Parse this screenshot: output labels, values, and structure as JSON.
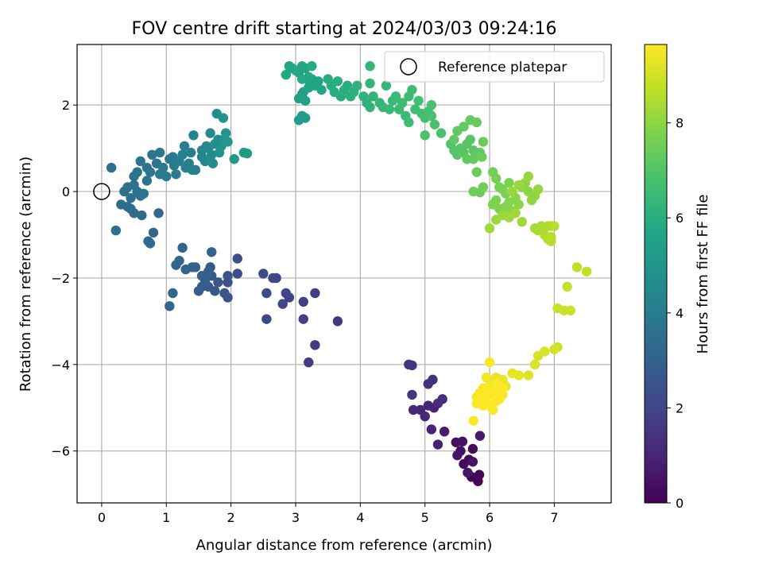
{
  "chart_data": {
    "type": "scatter",
    "title": "FOV centre drift starting at 2024/03/03 09:24:16",
    "xlabel": "Angular distance from reference (arcmin)",
    "ylabel": "Rotation from reference (arcmin)",
    "xlim": [
      -0.38,
      7.88
    ],
    "ylim": [
      -7.2,
      3.4
    ],
    "xticks": [
      0,
      1,
      2,
      3,
      4,
      5,
      6,
      7
    ],
    "yticks": [
      -6,
      -4,
      -2,
      0,
      2
    ],
    "grid": true,
    "legend": {
      "position": "top-right",
      "entries": [
        "Reference platepar"
      ]
    },
    "colorbar": {
      "label": "Hours from first FF file",
      "range": [
        0,
        9.65
      ],
      "ticks": [
        0,
        2,
        4,
        6,
        8
      ],
      "colormap": "viridis"
    },
    "reference_point": {
      "x": 0,
      "y": 0,
      "name": "Reference platepar"
    },
    "points": [
      [
        5.82,
        -6.7,
        0.05
      ],
      [
        5.72,
        -6.6,
        0.1
      ],
      [
        5.84,
        -6.55,
        0.15
      ],
      [
        5.6,
        -6.3,
        0.2
      ],
      [
        5.68,
        -6.2,
        0.25
      ],
      [
        5.74,
        -5.95,
        0.3
      ],
      [
        5.55,
        -6.0,
        0.35
      ],
      [
        5.48,
        -5.8,
        0.4
      ],
      [
        5.58,
        -5.78,
        0.45
      ],
      [
        5.74,
        -6.25,
        0.5
      ],
      [
        5.5,
        -6.1,
        0.55
      ],
      [
        5.66,
        -6.5,
        0.6
      ],
      [
        5.85,
        -5.65,
        0.7
      ],
      [
        5.3,
        -5.55,
        0.8
      ],
      [
        5.2,
        -5.85,
        0.85
      ],
      [
        5.1,
        -5.5,
        0.9
      ],
      [
        5.14,
        -5.0,
        0.95
      ],
      [
        5.05,
        -4.95,
        1.0
      ],
      [
        5.0,
        -5.2,
        1.05
      ],
      [
        4.93,
        -5.05,
        1.1
      ],
      [
        4.82,
        -5.05,
        1.15
      ],
      [
        5.2,
        -4.9,
        1.2
      ],
      [
        5.27,
        -4.8,
        1.25
      ],
      [
        5.12,
        -4.35,
        1.3
      ],
      [
        5.05,
        -4.45,
        1.35
      ],
      [
        4.75,
        -4.0,
        1.4
      ],
      [
        4.8,
        -4.02,
        1.45
      ],
      [
        4.8,
        -4.7,
        1.5
      ],
      [
        3.65,
        -3.0,
        1.6
      ],
      [
        3.3,
        -3.55,
        1.65
      ],
      [
        3.2,
        -3.95,
        1.7
      ],
      [
        3.3,
        -2.35,
        1.75
      ],
      [
        3.12,
        -2.55,
        1.8
      ],
      [
        3.12,
        -2.95,
        1.85
      ],
      [
        2.9,
        -2.45,
        1.9
      ],
      [
        2.85,
        -2.35,
        1.95
      ],
      [
        2.8,
        -2.6,
        2.0
      ],
      [
        2.7,
        -2.0,
        2.05
      ],
      [
        2.65,
        -2.0,
        2.1
      ],
      [
        2.55,
        -2.95,
        2.15
      ],
      [
        2.55,
        -2.35,
        2.2
      ],
      [
        2.5,
        -1.9,
        2.25
      ],
      [
        2.1,
        -1.9,
        2.3
      ],
      [
        2.1,
        -1.55,
        2.35
      ],
      [
        1.95,
        -1.95,
        2.4
      ],
      [
        1.95,
        -2.1,
        2.45
      ],
      [
        1.95,
        -2.45,
        2.5
      ],
      [
        1.9,
        -2.35,
        2.55
      ],
      [
        1.8,
        -2.1,
        2.6
      ],
      [
        1.75,
        -2.3,
        2.6
      ],
      [
        1.68,
        -1.75,
        2.65
      ],
      [
        1.7,
        -1.95,
        2.7
      ],
      [
        1.65,
        -2.2,
        2.75
      ],
      [
        1.55,
        -2.2,
        2.8
      ],
      [
        1.5,
        -2.3,
        2.85
      ],
      [
        1.55,
        -1.95,
        2.9
      ],
      [
        1.6,
        -2.05,
        2.9
      ],
      [
        1.65,
        -1.85,
        2.95
      ],
      [
        1.7,
        -1.4,
        3.0
      ],
      [
        1.45,
        -1.75,
        3.05
      ],
      [
        1.4,
        -1.75,
        3.05
      ],
      [
        1.3,
        -1.8,
        3.1
      ],
      [
        1.25,
        -1.3,
        3.1
      ],
      [
        1.2,
        -1.6,
        3.15
      ],
      [
        1.15,
        -1.7,
        3.15
      ],
      [
        1.1,
        -2.35,
        3.2
      ],
      [
        1.05,
        -2.65,
        3.2
      ],
      [
        0.88,
        -0.5,
        3.25
      ],
      [
        0.8,
        -0.95,
        3.25
      ],
      [
        0.75,
        -1.2,
        3.3
      ],
      [
        0.72,
        -1.15,
        3.3
      ],
      [
        0.62,
        -0.55,
        3.35
      ],
      [
        0.5,
        -0.5,
        3.4
      ],
      [
        0.45,
        -0.4,
        3.4
      ],
      [
        0.4,
        -0.35,
        3.45
      ],
      [
        0.3,
        -0.3,
        3.45
      ],
      [
        0.22,
        -0.9,
        3.5
      ],
      [
        0.15,
        0.55,
        3.5
      ],
      [
        0.35,
        0.0,
        3.5
      ],
      [
        0.4,
        0.1,
        3.55
      ],
      [
        0.45,
        -0.15,
        3.55
      ],
      [
        0.5,
        0.15,
        3.6
      ],
      [
        0.55,
        0.0,
        3.6
      ],
      [
        0.6,
        -0.1,
        3.6
      ],
      [
        0.65,
        -0.05,
        3.65
      ],
      [
        0.7,
        0.25,
        3.65
      ],
      [
        0.5,
        0.35,
        3.65
      ],
      [
        0.55,
        0.45,
        3.7
      ],
      [
        0.6,
        0.7,
        3.7
      ],
      [
        0.7,
        0.55,
        3.75
      ],
      [
        0.75,
        0.45,
        3.75
      ],
      [
        0.78,
        0.85,
        3.8
      ],
      [
        0.85,
        0.65,
        3.8
      ],
      [
        0.9,
        0.9,
        3.85
      ],
      [
        0.9,
        0.4,
        3.85
      ],
      [
        0.95,
        0.55,
        3.9
      ],
      [
        1.0,
        0.35,
        3.9
      ],
      [
        1.05,
        0.75,
        3.95
      ],
      [
        1.1,
        0.8,
        3.95
      ],
      [
        1.12,
        0.6,
        4.0
      ],
      [
        1.15,
        0.4,
        4.0
      ],
      [
        1.2,
        0.7,
        4.05
      ],
      [
        1.25,
        0.85,
        4.05
      ],
      [
        1.28,
        1.05,
        4.1
      ],
      [
        1.3,
        0.55,
        4.1
      ],
      [
        1.35,
        0.65,
        4.15
      ],
      [
        1.38,
        0.9,
        4.15
      ],
      [
        1.4,
        0.5,
        4.2
      ],
      [
        1.45,
        0.5,
        4.2
      ],
      [
        1.42,
        1.3,
        4.25
      ],
      [
        1.55,
        0.8,
        4.3
      ],
      [
        1.55,
        0.95,
        4.35
      ],
      [
        1.6,
        0.7,
        4.4
      ],
      [
        1.62,
        1.05,
        4.45
      ],
      [
        1.65,
        1.0,
        4.5
      ],
      [
        1.68,
        1.35,
        4.55
      ],
      [
        1.7,
        0.85,
        4.6
      ],
      [
        1.72,
        0.65,
        4.65
      ],
      [
        1.75,
        1.1,
        4.7
      ],
      [
        1.78,
        1.8,
        4.75
      ],
      [
        1.8,
        1.2,
        4.8
      ],
      [
        1.82,
        0.9,
        4.85
      ],
      [
        1.85,
        1.05,
        4.9
      ],
      [
        1.88,
        1.7,
        4.95
      ],
      [
        1.9,
        1.2,
        5.0
      ],
      [
        1.92,
        1.35,
        5.05
      ],
      [
        1.95,
        1.15,
        5.1
      ],
      [
        2.05,
        0.75,
        5.15
      ],
      [
        2.2,
        0.9,
        5.2
      ],
      [
        2.25,
        0.88,
        5.25
      ],
      [
        3.05,
        1.65,
        5.3
      ],
      [
        3.15,
        1.7,
        5.35
      ],
      [
        3.1,
        1.75,
        5.35
      ],
      [
        3.05,
        2.15,
        5.4
      ],
      [
        3.1,
        2.25,
        5.45
      ],
      [
        3.12,
        2.3,
        5.45
      ],
      [
        3.15,
        2.1,
        5.5
      ],
      [
        3.2,
        2.4,
        5.5
      ],
      [
        3.22,
        2.5,
        5.55
      ],
      [
        3.25,
        2.6,
        5.55
      ],
      [
        3.3,
        2.45,
        5.6
      ],
      [
        3.35,
        2.55,
        5.6
      ],
      [
        3.4,
        2.35,
        5.65
      ],
      [
        3.15,
        2.85,
        5.65
      ],
      [
        3.1,
        2.9,
        5.7
      ],
      [
        3.05,
        2.75,
        5.7
      ],
      [
        2.95,
        2.85,
        5.75
      ],
      [
        2.9,
        2.9,
        5.75
      ],
      [
        2.85,
        2.7,
        5.8
      ],
      [
        3.0,
        2.8,
        5.8
      ],
      [
        3.1,
        2.6,
        5.85
      ],
      [
        3.2,
        2.65,
        5.85
      ],
      [
        3.25,
        2.9,
        5.9
      ],
      [
        3.5,
        2.6,
        5.9
      ],
      [
        3.55,
        2.45,
        5.95
      ],
      [
        3.6,
        2.3,
        5.95
      ],
      [
        3.65,
        2.55,
        6.0
      ],
      [
        3.7,
        2.2,
        6.0
      ],
      [
        3.75,
        2.35,
        6.05
      ],
      [
        3.8,
        2.45,
        6.05
      ],
      [
        3.85,
        2.2,
        6.1
      ],
      [
        3.9,
        2.3,
        6.1
      ],
      [
        3.95,
        2.45,
        6.15
      ],
      [
        4.1,
        2.05,
        6.15
      ],
      [
        4.05,
        2.2,
        6.2
      ],
      [
        4.15,
        1.95,
        6.25
      ],
      [
        4.2,
        2.2,
        6.3
      ],
      [
        4.15,
        2.5,
        6.3
      ],
      [
        4.15,
        2.9,
        6.35
      ],
      [
        4.3,
        2.05,
        6.35
      ],
      [
        4.35,
        1.95,
        6.4
      ],
      [
        4.4,
        2.45,
        6.4
      ],
      [
        4.45,
        1.9,
        6.45
      ],
      [
        4.5,
        2.1,
        6.45
      ],
      [
        4.55,
        2.2,
        6.5
      ],
      [
        4.6,
        1.9,
        6.5
      ],
      [
        4.65,
        2.05,
        6.55
      ],
      [
        4.7,
        1.75,
        6.55
      ],
      [
        4.75,
        1.6,
        6.6
      ],
      [
        4.75,
        2.2,
        6.6
      ],
      [
        4.8,
        2.35,
        6.65
      ],
      [
        4.85,
        1.9,
        6.65
      ],
      [
        4.9,
        2.1,
        6.7
      ],
      [
        4.95,
        1.8,
        6.7
      ],
      [
        5.0,
        1.7,
        6.75
      ],
      [
        5.05,
        1.85,
        6.75
      ],
      [
        5.1,
        1.75,
        6.8
      ],
      [
        5.1,
        2.0,
        6.8
      ],
      [
        5.15,
        1.55,
        6.85
      ],
      [
        5.25,
        1.35,
        6.85
      ],
      [
        5.0,
        1.3,
        6.9
      ],
      [
        5.4,
        1.1,
        6.95
      ],
      [
        5.45,
        0.95,
        7.0
      ],
      [
        5.5,
        0.85,
        7.05
      ],
      [
        5.55,
        1.0,
        7.05
      ],
      [
        5.6,
        0.9,
        7.1
      ],
      [
        5.65,
        1.1,
        7.1
      ],
      [
        5.7,
        1.2,
        7.15
      ],
      [
        5.75,
        0.95,
        7.15
      ],
      [
        5.8,
        0.85,
        7.2
      ],
      [
        5.85,
        0.9,
        7.2
      ],
      [
        5.5,
        1.4,
        7.25
      ],
      [
        5.45,
        1.2,
        7.25
      ],
      [
        5.6,
        1.5,
        7.3
      ],
      [
        5.65,
        0.75,
        7.3
      ],
      [
        5.7,
        1.65,
        7.35
      ],
      [
        5.75,
        0.75,
        7.35
      ],
      [
        5.8,
        1.6,
        7.4
      ],
      [
        5.9,
        1.15,
        7.4
      ],
      [
        5.88,
        0.8,
        7.45
      ],
      [
        5.8,
        0.45,
        7.45
      ],
      [
        5.75,
        0.0,
        7.5
      ],
      [
        5.85,
        -0.02,
        7.5
      ],
      [
        5.9,
        0.1,
        7.55
      ],
      [
        6.05,
        0.45,
        7.6
      ],
      [
        6.1,
        0.3,
        7.6
      ],
      [
        6.15,
        0.1,
        7.65
      ],
      [
        6.2,
        0.05,
        7.65
      ],
      [
        6.25,
        -0.05,
        7.7
      ],
      [
        6.3,
        0.2,
        7.7
      ],
      [
        6.1,
        -0.2,
        7.75
      ],
      [
        6.05,
        -0.3,
        7.75
      ],
      [
        6.15,
        -0.4,
        7.8
      ],
      [
        6.2,
        -0.5,
        7.8
      ],
      [
        6.25,
        -0.35,
        7.85
      ],
      [
        6.3,
        -0.25,
        7.85
      ],
      [
        6.35,
        -0.45,
        7.9
      ],
      [
        6.4,
        -0.15,
        7.9
      ],
      [
        6.45,
        -0.3,
        7.95
      ],
      [
        6.5,
        0.1,
        7.95
      ],
      [
        6.55,
        0.2,
        8.0
      ],
      [
        6.6,
        0.0,
        8.0
      ],
      [
        6.65,
        -0.2,
        8.05
      ],
      [
        6.7,
        -0.1,
        8.05
      ],
      [
        6.75,
        0.05,
        8.1
      ],
      [
        6.6,
        0.35,
        8.1
      ],
      [
        6.45,
        0.15,
        8.15
      ],
      [
        6.35,
        0.0,
        8.15
      ],
      [
        6.1,
        -0.65,
        8.2
      ],
      [
        6.2,
        -0.55,
        8.2
      ],
      [
        6.3,
        -0.6,
        8.25
      ],
      [
        6.4,
        -0.5,
        8.25
      ],
      [
        6.0,
        -0.85,
        8.3
      ],
      [
        6.5,
        -0.7,
        8.3
      ],
      [
        6.7,
        -0.85,
        8.35
      ],
      [
        6.75,
        -0.9,
        8.35
      ],
      [
        6.8,
        -0.8,
        8.4
      ],
      [
        6.9,
        -0.8,
        8.45
      ],
      [
        6.95,
        -0.8,
        8.5
      ],
      [
        6.85,
        -1.0,
        8.5
      ],
      [
        6.9,
        -1.1,
        8.55
      ],
      [
        6.95,
        -1.05,
        8.55
      ],
      [
        6.95,
        -1.15,
        8.6
      ],
      [
        7.0,
        -0.8,
        8.6
      ],
      [
        7.35,
        -1.75,
        8.7
      ],
      [
        7.5,
        -1.85,
        8.75
      ],
      [
        7.2,
        -2.2,
        8.8
      ],
      [
        7.05,
        -2.7,
        8.85
      ],
      [
        7.15,
        -2.75,
        8.85
      ],
      [
        7.25,
        -2.75,
        8.9
      ],
      [
        7.05,
        -3.6,
        8.95
      ],
      [
        7.0,
        -3.65,
        9.0
      ],
      [
        6.85,
        -3.7,
        9.05
      ],
      [
        6.75,
        -3.8,
        9.1
      ],
      [
        6.7,
        -4.0,
        9.15
      ],
      [
        6.6,
        -4.25,
        9.2
      ],
      [
        6.45,
        -4.25,
        9.25
      ],
      [
        6.35,
        -4.2,
        9.3
      ],
      [
        6.2,
        -4.35,
        9.35
      ],
      [
        6.25,
        -4.5,
        9.35
      ],
      [
        6.1,
        -4.3,
        9.4
      ],
      [
        6.05,
        -4.4,
        9.4
      ],
      [
        6.0,
        -4.5,
        9.45
      ],
      [
        6.1,
        -4.55,
        9.45
      ],
      [
        6.15,
        -4.6,
        9.5
      ],
      [
        6.2,
        -4.7,
        9.5
      ],
      [
        5.95,
        -4.3,
        9.5
      ],
      [
        5.9,
        -4.55,
        9.55
      ],
      [
        5.85,
        -4.65,
        9.55
      ],
      [
        5.8,
        -4.75,
        9.55
      ],
      [
        5.85,
        -4.9,
        9.55
      ],
      [
        5.9,
        -4.95,
        9.6
      ],
      [
        6.0,
        -4.95,
        9.6
      ],
      [
        6.05,
        -5.05,
        9.6
      ],
      [
        6.1,
        -4.85,
        9.6
      ],
      [
        6.15,
        -4.8,
        9.6
      ],
      [
        6.05,
        -4.7,
        9.6
      ],
      [
        5.95,
        -4.75,
        9.62
      ],
      [
        6.0,
        -3.95,
        9.62
      ],
      [
        5.75,
        -5.3,
        9.62
      ],
      [
        5.8,
        -4.9,
        9.63
      ],
      [
        6.2,
        -4.55,
        9.63
      ],
      [
        6.0,
        -4.6,
        9.63
      ],
      [
        5.95,
        -4.55,
        9.64
      ],
      [
        6.1,
        -4.45,
        9.64
      ]
    ]
  }
}
